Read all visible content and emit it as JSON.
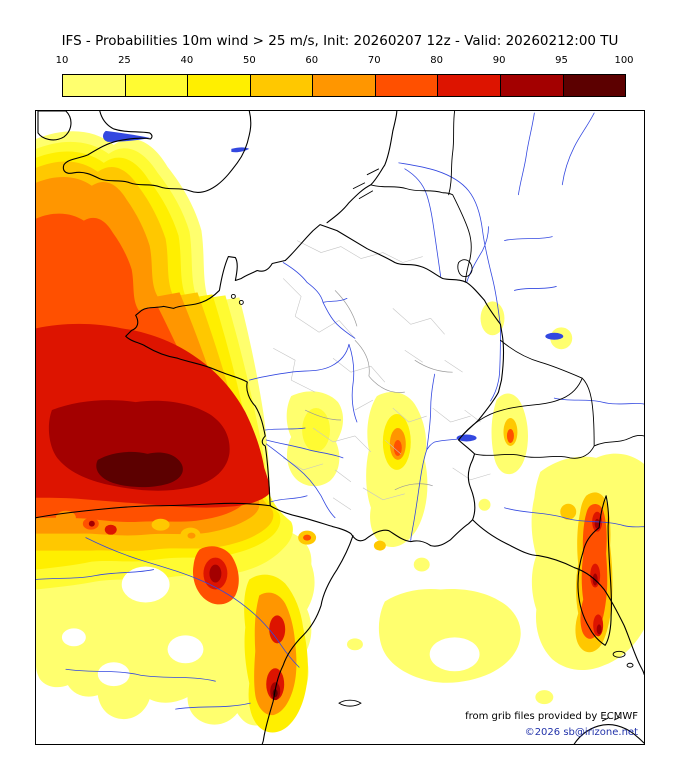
{
  "header": {
    "title": "IFS - Probabilities 10m wind > 25 m/s, Init: 20260207 12z - Valid: 20260212:00 TU"
  },
  "colorbar": {
    "ticks": [
      "10",
      "25",
      "40",
      "50",
      "60",
      "70",
      "80",
      "90",
      "95",
      "100"
    ],
    "colors": [
      "#ffff6e",
      "#fffb32",
      "#ffef00",
      "#ffc800",
      "#ff9600",
      "#ff5000",
      "#dd1400",
      "#a30000",
      "#5c0000"
    ]
  },
  "map": {
    "sea_color": "#ffffff",
    "coast_color": "#000000",
    "river_color": "#3348e0",
    "attribution": "from grib files provided by ECMWF",
    "copyright": "©2026 sb@irizone.net",
    "copyright_color": "#2233aa"
  },
  "chart_data": {
    "type": "heatmap",
    "title": "IFS - Probabilities 10m wind > 25 m/s, Init: 20260207 12z - Valid: 20260212:00 TU",
    "legend_values": [
      10,
      25,
      40,
      50,
      60,
      70,
      80,
      90,
      95,
      100
    ],
    "legend_colors": [
      "#ffff6e",
      "#fffb32",
      "#ffef00",
      "#ffc800",
      "#ff9600",
      "#ff5000",
      "#dd1400",
      "#a30000",
      "#5c0000"
    ],
    "legend_position": "top",
    "units": "%"
  }
}
